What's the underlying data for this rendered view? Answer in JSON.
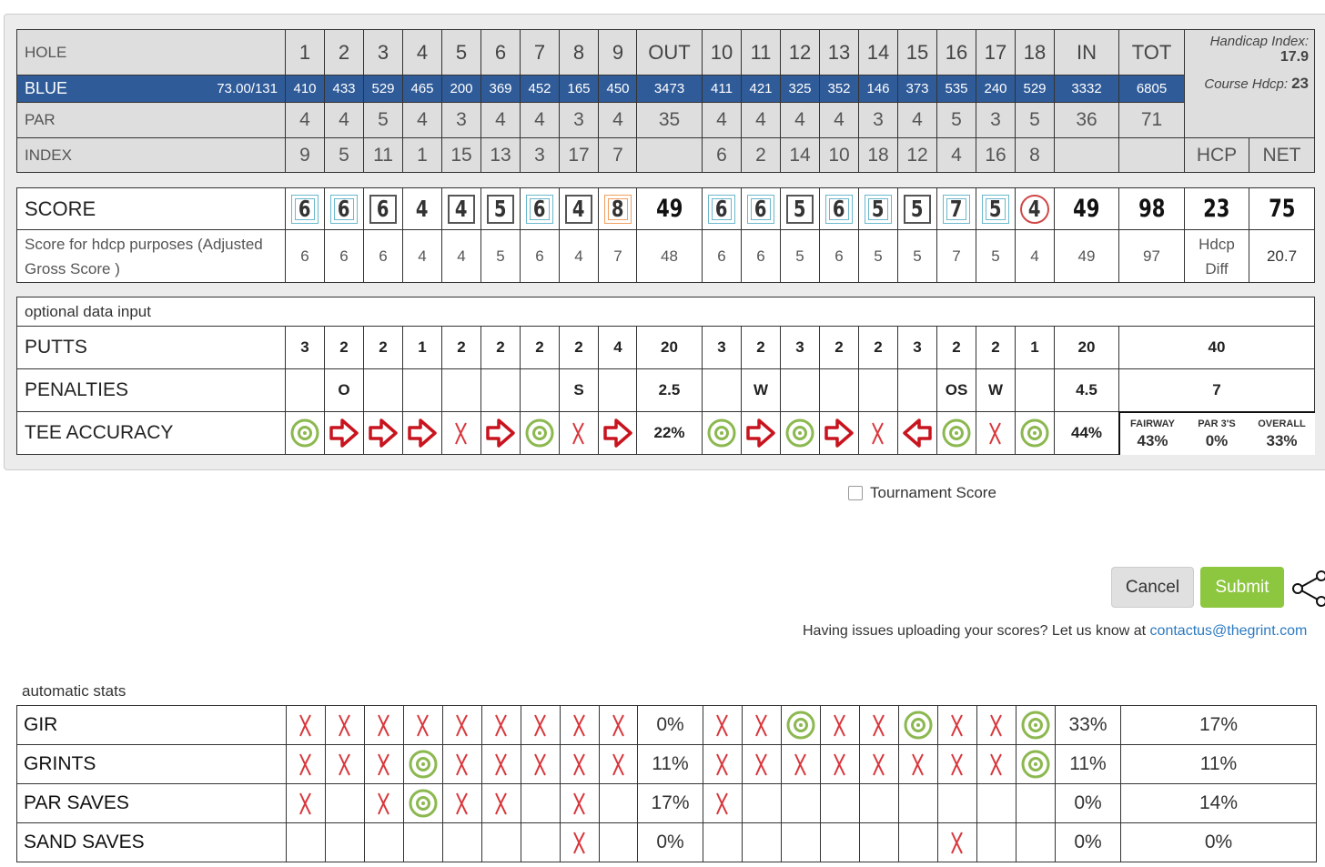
{
  "header": {
    "hole_label": "HOLE",
    "holes": [
      1,
      2,
      3,
      4,
      5,
      6,
      7,
      8,
      9,
      10,
      11,
      12,
      13,
      14,
      15,
      16,
      17,
      18
    ],
    "out": "OUT",
    "in": "IN",
    "tot": "TOT",
    "handicap_index_label": "Handicap Index:",
    "handicap_index": 17.9,
    "course_hdcp_label": "Course Hdcp:",
    "course_hdcp": 23
  },
  "tee": {
    "name": "BLUE",
    "rating": "73.00/131",
    "yards": [
      410,
      433,
      529,
      465,
      200,
      369,
      452,
      165,
      450,
      411,
      421,
      325,
      352,
      146,
      373,
      535,
      240,
      529
    ],
    "out": 3473,
    "in": 3332,
    "tot": 6805
  },
  "par": {
    "label": "PAR",
    "values": [
      4,
      4,
      5,
      4,
      3,
      4,
      4,
      3,
      4,
      4,
      4,
      4,
      4,
      3,
      4,
      5,
      3,
      5
    ],
    "out": 35,
    "in": 36,
    "tot": 71
  },
  "index": {
    "label": "INDEX",
    "values": [
      9,
      5,
      11,
      1,
      15,
      13,
      3,
      17,
      7,
      6,
      2,
      14,
      10,
      18,
      12,
      4,
      16,
      8
    ],
    "hcp_label": "HCP",
    "net_label": "NET"
  },
  "score": {
    "label": "SCORE",
    "values": [
      6,
      6,
      6,
      4,
      4,
      5,
      6,
      4,
      8,
      6,
      6,
      5,
      6,
      5,
      5,
      7,
      5,
      4
    ],
    "out": 49,
    "in": 49,
    "tot": 98,
    "hcp": 23,
    "net": 75
  },
  "adjusted": {
    "label": "Score for hdcp purposes (Adjusted Gross Score )",
    "values": [
      6,
      6,
      6,
      4,
      4,
      5,
      6,
      4,
      7,
      6,
      6,
      5,
      6,
      5,
      5,
      7,
      5,
      4
    ],
    "out": 48,
    "in": 49,
    "tot": 97,
    "hdcp_diff_label": "Hdcp Diff",
    "hdcp_diff": 20.7
  },
  "optional": {
    "label": "optional data input",
    "putts": {
      "label": "PUTTS",
      "values": [
        3,
        2,
        2,
        1,
        2,
        2,
        2,
        2,
        4,
        3,
        2,
        3,
        2,
        2,
        3,
        2,
        2,
        1
      ],
      "out": 20,
      "in": 20,
      "tot": 40
    },
    "penalties": {
      "label": "PENALTIES",
      "values": [
        null,
        "O",
        null,
        null,
        null,
        null,
        null,
        "S",
        null,
        null,
        "W",
        null,
        null,
        null,
        null,
        "OS",
        "W",
        null
      ],
      "out": 2.5,
      "in": 4.5,
      "tot": 7
    },
    "tee_accuracy": {
      "label": "TEE ACCURACY",
      "values": [
        "hit",
        "right",
        "right",
        "right",
        "miss",
        "right",
        "hit",
        "miss",
        "right",
        "hit",
        "right",
        "hit",
        "right",
        "miss",
        "left",
        "hit",
        "miss",
        "hit"
      ],
      "out": "22%",
      "in": "44%",
      "summary": [
        {
          "label": "FAIRWAY",
          "value": "43%"
        },
        {
          "label": "PAR 3'S",
          "value": "0%"
        },
        {
          "label": "OVERALL",
          "value": "33%"
        }
      ]
    }
  },
  "tournament_label": "Tournament Score",
  "buttons": {
    "cancel": "Cancel",
    "submit": "Submit"
  },
  "help": {
    "text": "Having issues uploading your scores? Let us know at ",
    "link": "contactus@thegrint.com"
  },
  "stats": {
    "label": "automatic stats",
    "rows": [
      {
        "label": "GIR",
        "values": [
          "x",
          "x",
          "x",
          "x",
          "x",
          "x",
          "x",
          "x",
          "x",
          "x",
          "x",
          "o",
          "x",
          "x",
          "o",
          "x",
          "x",
          "o"
        ],
        "out": "0%",
        "in": "33%",
        "tot": "17%"
      },
      {
        "label": "GRINTS",
        "values": [
          "x",
          "x",
          "x",
          "o",
          "x",
          "x",
          "x",
          "x",
          "x",
          "x",
          "x",
          "x",
          "x",
          "x",
          "x",
          "x",
          "x",
          "o"
        ],
        "out": "11%",
        "in": "11%",
        "tot": "11%"
      },
      {
        "label": "PAR SAVES",
        "values": [
          "x",
          null,
          "x",
          "o",
          "x",
          "x",
          null,
          "x",
          null,
          "x",
          null,
          null,
          null,
          null,
          null,
          null,
          null,
          null
        ],
        "out": "17%",
        "in": "0%",
        "tot": "14%"
      },
      {
        "label": "SAND SAVES",
        "values": [
          null,
          null,
          null,
          null,
          null,
          null,
          null,
          "x",
          null,
          null,
          null,
          null,
          null,
          null,
          null,
          "x",
          null,
          null
        ],
        "out": "0%",
        "in": "0%",
        "tot": "0%"
      }
    ]
  }
}
